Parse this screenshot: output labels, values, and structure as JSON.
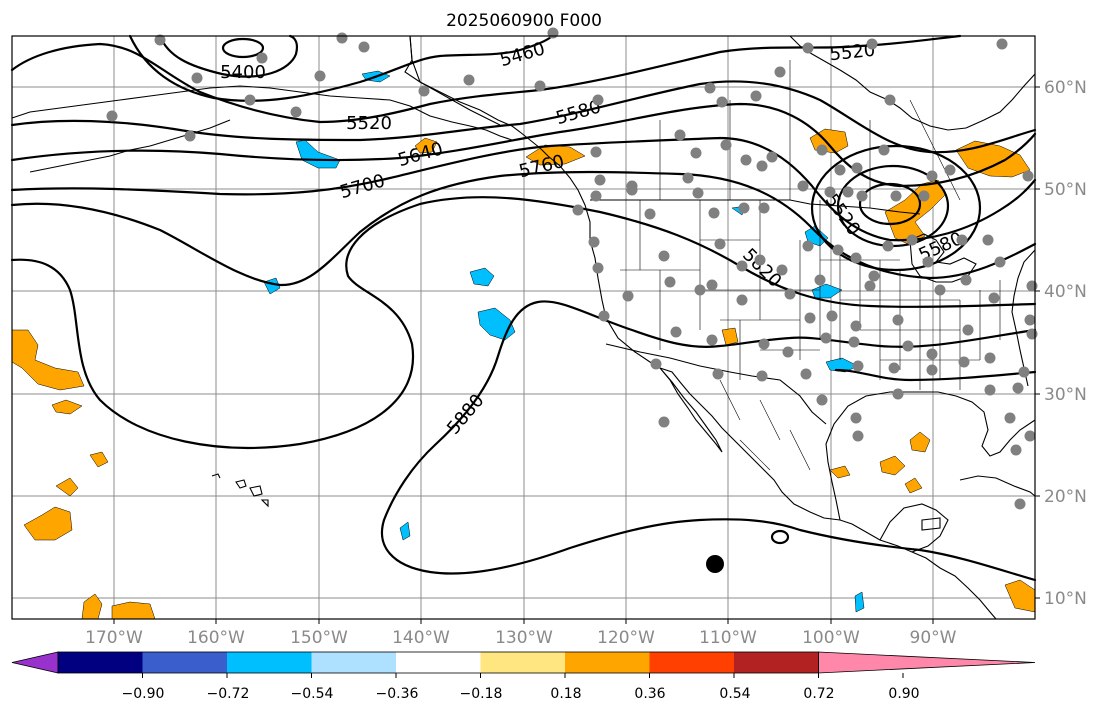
{
  "title": "2025060900 F000",
  "map": {
    "lon_ticks": [
      "170°W",
      "160°W",
      "150°W",
      "140°W",
      "130°W",
      "120°W",
      "110°W",
      "100°W",
      "90°W"
    ],
    "lat_ticks": [
      "10°N",
      "20°N",
      "30°N",
      "40°N",
      "50°N",
      "60°N"
    ],
    "contour_labels": [
      "5400",
      "5460",
      "5520",
      "5520",
      "5520",
      "5580",
      "5580",
      "5640",
      "5700",
      "5760",
      "5820",
      "5880"
    ],
    "colors": {
      "contour": "#000000",
      "grid": "#8c8c8c",
      "station_marker": "#808080",
      "positive_anomaly": "#ffa500",
      "negative_anomaly": "#00bfff"
    }
  },
  "colorbar": {
    "tick_labels": [
      "−0.90",
      "−0.72",
      "−0.54",
      "−0.36",
      "−0.18",
      "0.18",
      "0.36",
      "0.54",
      "0.72",
      "0.90"
    ],
    "colors": [
      "#9932cc",
      "#000080",
      "#3a5fcd",
      "#00bfff",
      "#aee0ff",
      "#ffffff",
      "#ffe680",
      "#ffa500",
      "#ff4000",
      "#b22222",
      "#ff88aa"
    ]
  }
}
